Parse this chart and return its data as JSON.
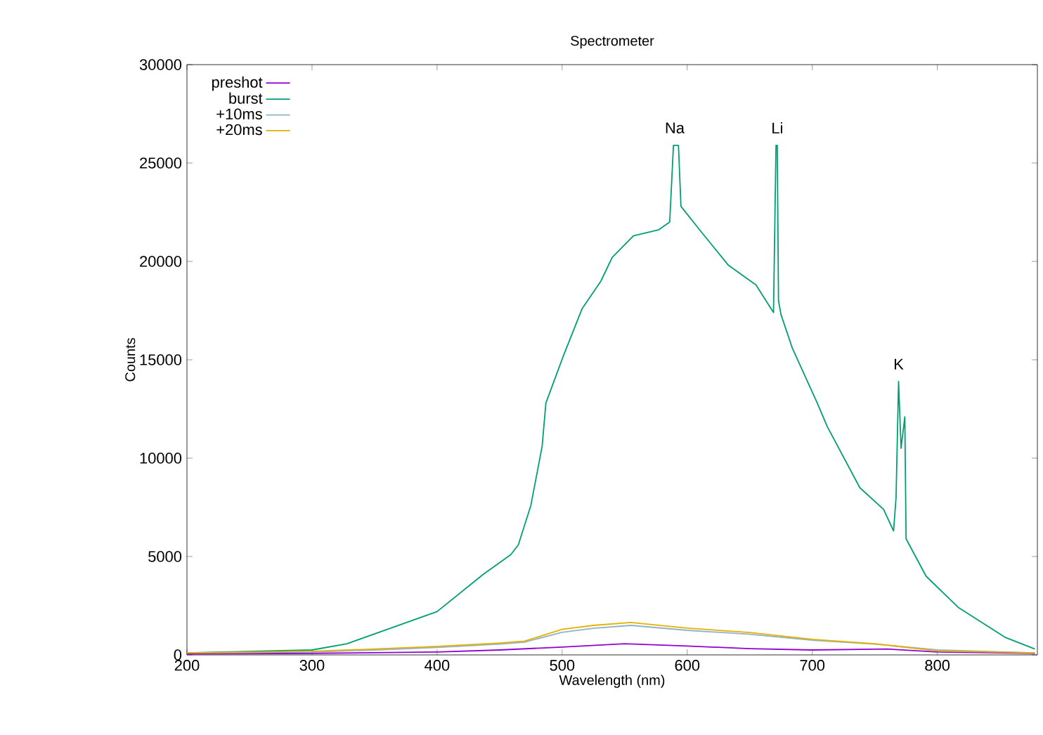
{
  "chart_data": {
    "type": "line",
    "title": "Spectrometer",
    "xlabel": "Wavelength (nm)",
    "ylabel": "Counts",
    "xlim": [
      200,
      880
    ],
    "ylim": [
      0,
      30000
    ],
    "xticks": [
      200,
      300,
      400,
      500,
      600,
      700,
      800
    ],
    "yticks": [
      0,
      5000,
      10000,
      15000,
      20000,
      25000,
      30000
    ],
    "legend": "top left",
    "annotations": [
      {
        "text": "Na",
        "x": 590,
        "y": 25900
      },
      {
        "text": "Li",
        "x": 672,
        "y": 25900
      },
      {
        "text": "K",
        "x": 769,
        "y": 13900
      }
    ],
    "series": [
      {
        "name": "preshot",
        "color": "#9400d3",
        "x": [
          200,
          300,
          400,
          450,
          500,
          550,
          600,
          650,
          700,
          760,
          800,
          850,
          878
        ],
        "values": [
          50,
          80,
          150,
          250,
          400,
          570,
          450,
          320,
          250,
          300,
          150,
          100,
          80
        ]
      },
      {
        "name": "burst",
        "color": "#009e73",
        "x": [
          200,
          250,
          300,
          328,
          400,
          437,
          459,
          465,
          475,
          484,
          487,
          501,
          516,
          531,
          540,
          557,
          577,
          586,
          589,
          591,
          593,
          595,
          610,
          633,
          655,
          669,
          671,
          672,
          673,
          675,
          684,
          704,
          712,
          738,
          757,
          765,
          767,
          769,
          771,
          774,
          775,
          791,
          817,
          854,
          878
        ],
        "values": [
          100,
          null,
          250,
          570,
          2200,
          4100,
          5100,
          5600,
          7600,
          10600,
          12800,
          15200,
          17600,
          19000,
          20200,
          21300,
          21600,
          22000,
          25900,
          25900,
          25900,
          22800,
          21600,
          19800,
          18800,
          17400,
          25900,
          25900,
          18000,
          17300,
          15600,
          12800,
          11600,
          8500,
          7400,
          6300,
          8000,
          13900,
          10500,
          12100,
          5900,
          4000,
          2400,
          900,
          300
        ]
      },
      {
        "name": "+10ms",
        "color": "#8fb3c4",
        "x": [
          200,
          300,
          350,
          400,
          450,
          470,
          500,
          525,
          555,
          600,
          650,
          700,
          750,
          800,
          878
        ],
        "values": [
          100,
          150,
          250,
          380,
          550,
          650,
          1150,
          1350,
          1500,
          1250,
          1050,
          750,
          550,
          250,
          100
        ]
      },
      {
        "name": "+20ms",
        "color": "#e6b000",
        "x": [
          200,
          300,
          350,
          400,
          450,
          470,
          500,
          525,
          555,
          600,
          650,
          700,
          750,
          800,
          878
        ],
        "values": [
          100,
          180,
          300,
          430,
          600,
          700,
          1300,
          1500,
          1650,
          1360,
          1140,
          790,
          570,
          200,
          100
        ]
      }
    ]
  }
}
